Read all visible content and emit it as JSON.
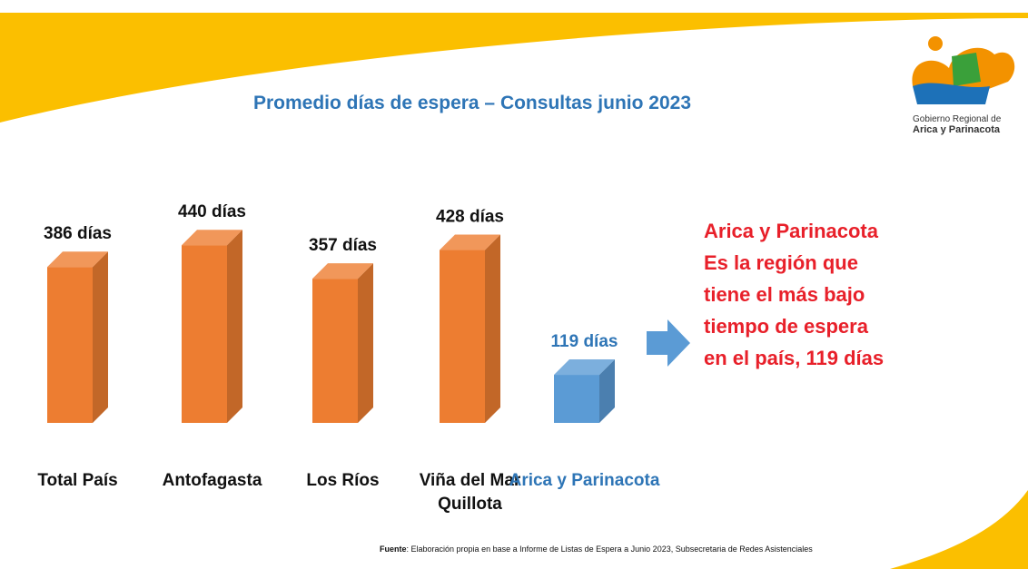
{
  "chart_data": {
    "type": "bar",
    "title": "Promedio días de espera – Consultas junio 2023",
    "categories": [
      "Total País",
      "Antofagasta",
      "Los Ríos",
      "Viña del Mar\nQuillota",
      "Arica y Parinacota"
    ],
    "values": [
      386,
      440,
      357,
      428,
      119
    ],
    "value_labels": [
      "386 días",
      "440 días",
      "357 días",
      "428 días",
      "119 días"
    ],
    "colors": [
      "#ed7d31",
      "#ed7d31",
      "#ed7d31",
      "#ed7d31",
      "#5b9bd5"
    ],
    "annotation": [
      "Arica y Parinacota",
      "Es la región que",
      "tiene el más bajo",
      "tiempo de espera",
      "en el país, 119 días"
    ]
  },
  "logo": {
    "line1": "Gobierno Regional de",
    "line2": "Arica y Parinacota"
  },
  "source": {
    "label": "Fuente",
    "text": ": Elaboración propia en base a Informe de Listas de Espera a Junio 2023, Subsecretaria de Redes Asistenciales"
  }
}
